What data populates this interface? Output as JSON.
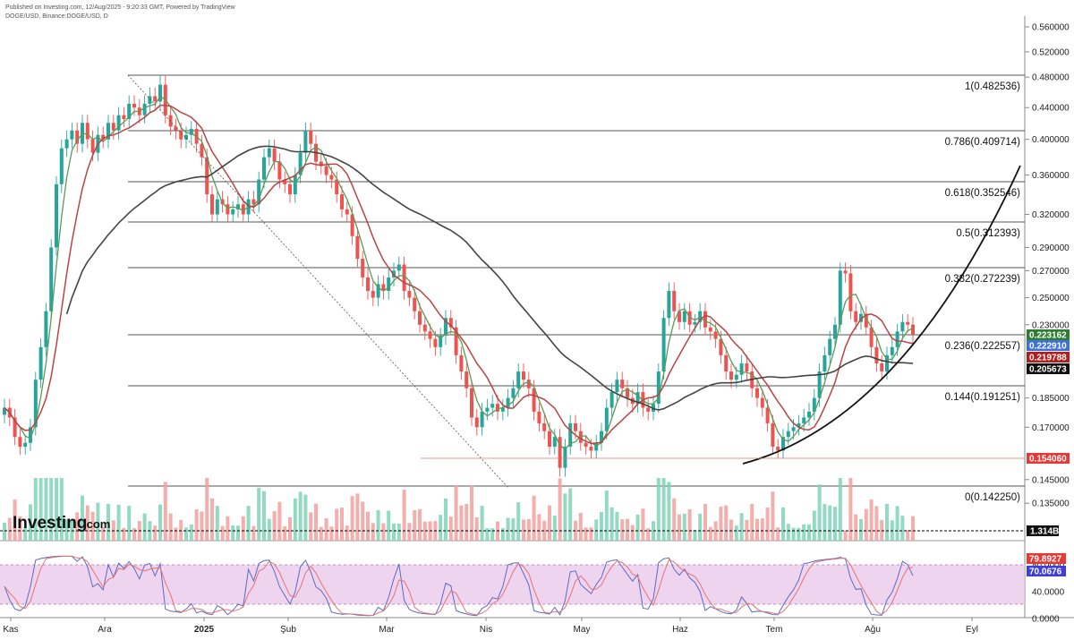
{
  "header": {
    "published": "Published on Investing.com, 12/Aug/2025 - 9:20:33 GMT, Powered by TradingView",
    "symbol": "DOGE/USD, Binance:DOGE/USD, D"
  },
  "logo": {
    "text": "Investing",
    "suffix": ".com"
  },
  "colors": {
    "up": "#26a69a",
    "down": "#ef5350",
    "ma_short": "#5a9b5a",
    "ma_mid": "#b84444",
    "ma_long": "#444444",
    "stoch_k": "#5c6bc0",
    "stoch_d": "#e57373",
    "stoch_band": "#e1bee7"
  },
  "chart_data": {
    "type": "candlestick",
    "title": "DOGE/USD, Binance:DOGE/USD, D",
    "y_axis_ticks": [
      "0.560000",
      "0.520000",
      "0.480000",
      "0.440000",
      "0.400000",
      "0.360000",
      "0.320000",
      "0.290000",
      "0.270000",
      "0.250000",
      "0.230000",
      "0.185000",
      "0.170000",
      "0.145000",
      "0.135000"
    ],
    "x_axis_labels": [
      "Kas",
      "Ara",
      "2025",
      "Şub",
      "Mar",
      "Nis",
      "May",
      "Haz",
      "Tem",
      "Ağu",
      "Eyl"
    ],
    "fibonacci": [
      {
        "level": "1",
        "price": 0.482536,
        "label": "1(0.482536)"
      },
      {
        "level": "0.786",
        "price": 0.409714,
        "label": "0.786(0.409714)"
      },
      {
        "level": "0.618",
        "price": 0.352546,
        "label": "0.618(0.352546)"
      },
      {
        "level": "0.5",
        "price": 0.312393,
        "label": "0.5(0.312393)"
      },
      {
        "level": "0.382",
        "price": 0.272239,
        "label": "0.382(0.272239)"
      },
      {
        "level": "0.236",
        "price": 0.222557,
        "label": "0.236(0.222557)"
      },
      {
        "level": "0.144",
        "price": 0.191251,
        "label": "0.144(0.191251)"
      },
      {
        "level": "0",
        "price": 0.14225,
        "label": "0(0.142250)"
      }
    ],
    "price_tags": [
      {
        "value": "0.223162",
        "color": "#2e7d32"
      },
      {
        "value": "0.222910",
        "color": "#3f6fd8"
      },
      {
        "value": "0.219788",
        "color": "#b71c1c"
      },
      {
        "value": "0.205673",
        "color": "#111111"
      },
      {
        "value": "0.154060",
        "color": "#e53935"
      }
    ],
    "volume_tag": "1.314B",
    "stochastic": {
      "ticks": [
        "80.0000",
        "40.0000",
        "0.0000"
      ],
      "k": "79.8927",
      "d": "70.0676"
    },
    "closes": [
      0.18,
      0.175,
      0.165,
      0.16,
      0.162,
      0.17,
      0.195,
      0.215,
      0.24,
      0.29,
      0.35,
      0.39,
      0.4,
      0.41,
      0.395,
      0.42,
      0.4,
      0.385,
      0.405,
      0.4,
      0.42,
      0.41,
      0.43,
      0.425,
      0.445,
      0.44,
      0.43,
      0.445,
      0.455,
      0.448,
      0.47,
      0.43,
      0.415,
      0.41,
      0.4,
      0.405,
      0.412,
      0.395,
      0.38,
      0.34,
      0.32,
      0.335,
      0.33,
      0.32,
      0.325,
      0.33,
      0.32,
      0.335,
      0.33,
      0.355,
      0.38,
      0.39,
      0.375,
      0.355,
      0.35,
      0.34,
      0.36,
      0.385,
      0.41,
      0.395,
      0.375,
      0.37,
      0.36,
      0.355,
      0.34,
      0.325,
      0.32,
      0.3,
      0.28,
      0.265,
      0.255,
      0.25,
      0.26,
      0.255,
      0.265,
      0.27,
      0.275,
      0.255,
      0.25,
      0.24,
      0.23,
      0.225,
      0.22,
      0.215,
      0.222,
      0.235,
      0.228,
      0.21,
      0.2,
      0.19,
      0.175,
      0.17,
      0.178,
      0.18,
      0.182,
      0.178,
      0.18,
      0.185,
      0.19,
      0.2,
      0.195,
      0.19,
      0.178,
      0.172,
      0.168,
      0.16,
      0.165,
      0.15,
      0.16,
      0.172,
      0.168,
      0.162,
      0.16,
      0.158,
      0.162,
      0.168,
      0.18,
      0.188,
      0.195,
      0.19,
      0.185,
      0.182,
      0.188,
      0.18,
      0.178,
      0.182,
      0.2,
      0.235,
      0.255,
      0.24,
      0.232,
      0.24,
      0.23,
      0.232,
      0.24,
      0.228,
      0.225,
      0.22,
      0.21,
      0.2,
      0.195,
      0.198,
      0.205,
      0.2,
      0.19,
      0.185,
      0.18,
      0.172,
      0.16,
      0.158,
      0.165,
      0.168,
      0.17,
      0.172,
      0.175,
      0.178,
      0.185,
      0.2,
      0.21,
      0.22,
      0.23,
      0.27,
      0.268,
      0.24,
      0.232,
      0.238,
      0.228,
      0.215,
      0.205,
      0.2,
      0.21,
      0.215,
      0.225,
      0.232,
      0.23,
      0.223
    ]
  }
}
